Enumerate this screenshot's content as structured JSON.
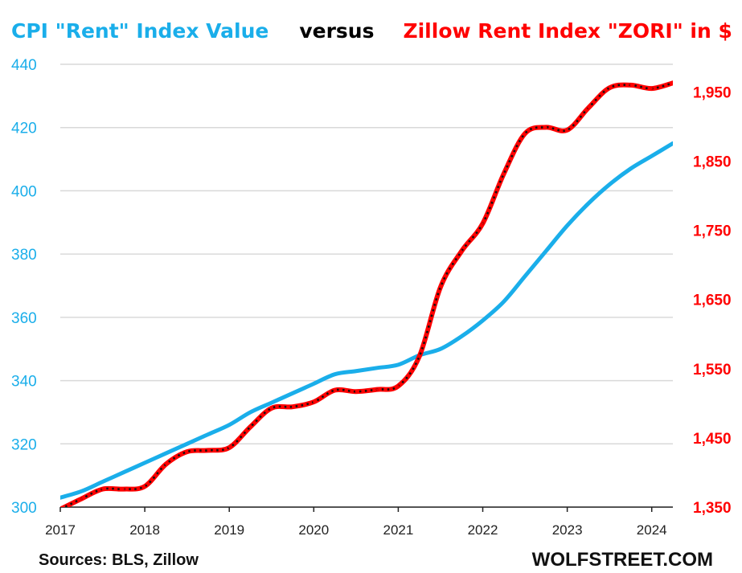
{
  "title": {
    "part1": "CPI \"Rent\" Index Value",
    "part2": "versus",
    "part3": "Zillow Rent Index \"ZORI\" in $"
  },
  "footer": {
    "source": "Sources: BLS, Zillow",
    "brand": "WOLFSTREET.COM"
  },
  "colors": {
    "cpi": "#1aaeea",
    "zori": "#ff0000",
    "zori_dots": "#111111",
    "grid": "#d9d9d9",
    "axis": "#222222"
  },
  "chart_data": {
    "type": "line",
    "x_ticks": [
      "2017",
      "2018",
      "2019",
      "2020",
      "2021",
      "2022",
      "2023",
      "2024"
    ],
    "x_range": [
      2017.0,
      2024.25
    ],
    "y_left": {
      "range": [
        300,
        440
      ],
      "ticks": [
        "300",
        "320",
        "340",
        "360",
        "380",
        "400",
        "420",
        "440"
      ]
    },
    "y_right": {
      "range": [
        1350,
        1990
      ],
      "ticks": [
        "1,350",
        "1,450",
        "1,550",
        "1,650",
        "1,750",
        "1,850",
        "1,950"
      ]
    },
    "grid": "horizontal",
    "series": [
      {
        "name": "CPI \"Rent\" Index Value",
        "axis": "left",
        "x": [
          2017.0,
          2017.25,
          2017.5,
          2017.75,
          2018.0,
          2018.25,
          2018.5,
          2018.75,
          2019.0,
          2019.25,
          2019.5,
          2019.75,
          2020.0,
          2020.25,
          2020.5,
          2020.75,
          2021.0,
          2021.25,
          2021.5,
          2021.75,
          2022.0,
          2022.25,
          2022.5,
          2022.75,
          2023.0,
          2023.25,
          2023.5,
          2023.75,
          2024.0,
          2024.25
        ],
        "y": [
          303,
          305,
          308,
          311,
          314,
          317,
          320,
          323,
          326,
          330,
          333,
          336,
          339,
          342,
          343,
          344,
          345,
          348,
          350,
          354,
          359,
          365,
          373,
          381,
          389,
          396,
          402,
          407,
          411,
          415
        ]
      },
      {
        "name": "Zillow Rent Index \"ZORI\" in $",
        "axis": "right",
        "x": [
          2017.0,
          2017.25,
          2017.5,
          2017.75,
          2018.0,
          2018.25,
          2018.5,
          2018.75,
          2019.0,
          2019.25,
          2019.5,
          2019.75,
          2020.0,
          2020.25,
          2020.5,
          2020.75,
          2021.0,
          2021.25,
          2021.5,
          2021.75,
          2022.0,
          2022.25,
          2022.5,
          2022.75,
          2023.0,
          2023.25,
          2023.5,
          2023.75,
          2024.0,
          2024.25
        ],
        "y": [
          1347,
          1362,
          1376,
          1376,
          1380,
          1412,
          1430,
          1432,
          1436,
          1466,
          1493,
          1495,
          1502,
          1519,
          1517,
          1520,
          1525,
          1568,
          1668,
          1720,
          1760,
          1832,
          1890,
          1899,
          1895,
          1927,
          1956,
          1960,
          1955,
          1963
        ]
      }
    ]
  }
}
